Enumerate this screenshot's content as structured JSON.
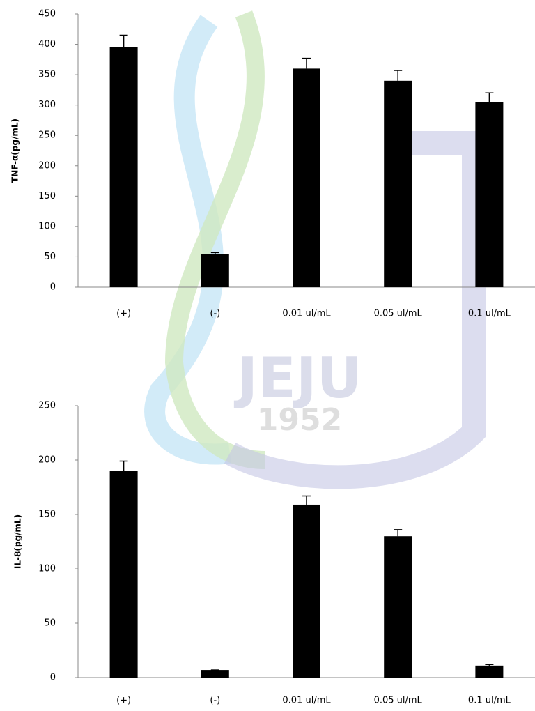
{
  "watermark": {
    "name": "JEJU",
    "year": "1952"
  },
  "chart_data": [
    {
      "type": "bar",
      "ylabel": "TNF-α(pg/mL)",
      "categories": [
        "(+)",
        "(-)",
        "0.01 ul/mL",
        "0.05 ul/mL",
        "0.1 ul/mL"
      ],
      "values": [
        395,
        55,
        360,
        340,
        305
      ],
      "errors": [
        20,
        2,
        17,
        17,
        15
      ],
      "color": "#000000",
      "ylim": [
        0,
        450
      ],
      "yticks": [
        0,
        50,
        100,
        150,
        200,
        250,
        300,
        350,
        400,
        450
      ],
      "grid": false
    },
    {
      "type": "bar",
      "ylabel": "IL-8(pg/mL)",
      "categories": [
        "(+)",
        "(-)",
        "0.01 ul/mL",
        "0.05 ul/mL",
        "0.1 ul/mL"
      ],
      "values": [
        190,
        7,
        159,
        130,
        11
      ],
      "errors": [
        9,
        0,
        8,
        6,
        1
      ],
      "color": "#000000",
      "ylim": [
        0,
        250
      ],
      "yticks": [
        0,
        50,
        100,
        150,
        200,
        250
      ],
      "grid": false
    }
  ]
}
